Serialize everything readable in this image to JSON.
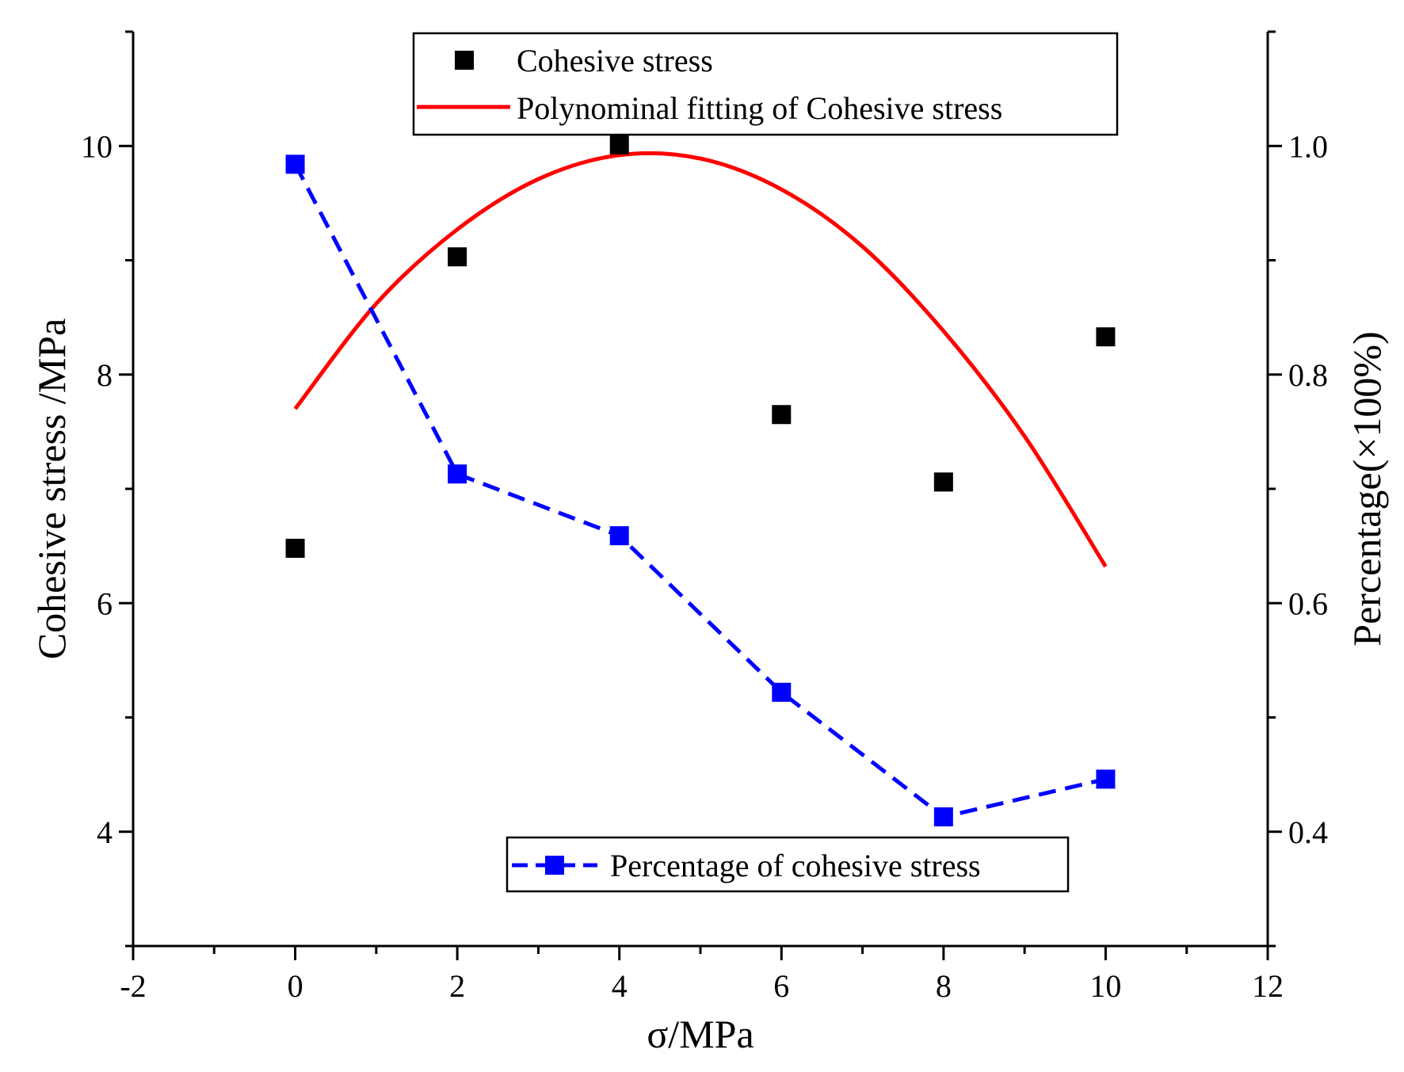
{
  "chart_data": {
    "type": "scatter",
    "title": "",
    "xlabel": "σ/MPa",
    "ylabel": "Cohesive stress /MPa",
    "y2label": "Percentage(×100%)",
    "xlim": [
      -2,
      12
    ],
    "ylim": [
      3,
      11
    ],
    "y2lim": [
      0.3,
      1.1
    ],
    "x_ticks": [
      -2,
      0,
      2,
      4,
      6,
      8,
      10,
      12
    ],
    "x_tick_labels": [
      "-2",
      "0",
      "2",
      "4",
      "6",
      "8",
      "10",
      "12"
    ],
    "y_ticks": [
      4,
      6,
      8,
      10
    ],
    "y_tick_labels": [
      "4",
      "6",
      "8",
      "10"
    ],
    "y2_ticks": [
      0.4,
      0.6,
      0.8,
      1.0
    ],
    "y2_tick_labels": [
      "0.4",
      "0.6",
      "0.8",
      "1.0"
    ],
    "series": [
      {
        "name": "Cohesive stress",
        "kind": "scatter",
        "axis": "left",
        "color": "#000000",
        "x": [
          0,
          2,
          4,
          6,
          8,
          10
        ],
        "values": [
          6.48,
          9.03,
          10.01,
          7.65,
          7.06,
          8.33
        ]
      },
      {
        "name": "Polynominal fitting of Cohesive stress",
        "kind": "fit-curve",
        "axis": "left",
        "color": "#ff0000",
        "x": [
          0,
          1,
          2,
          3,
          4,
          5,
          6,
          7,
          8,
          9,
          10
        ],
        "values": [
          7.7,
          8.62,
          9.27,
          9.71,
          9.92,
          9.89,
          9.62,
          9.12,
          8.38,
          7.46,
          6.32
        ]
      },
      {
        "name": "Percentage of cohesive stress",
        "kind": "dashed-line-markers",
        "axis": "right",
        "color": "#0000ff",
        "x": [
          0,
          2,
          4,
          6,
          8,
          10
        ],
        "values": [
          0.984,
          0.713,
          0.659,
          0.522,
          0.413,
          0.446
        ]
      }
    ],
    "legend": {
      "top": [
        "Cohesive stress",
        "Polynominal fitting of Cohesive stress"
      ],
      "bottom": [
        "Percentage of cohesive stress"
      ],
      "top_position": "top-center",
      "bottom_position": "bottom-center"
    }
  }
}
